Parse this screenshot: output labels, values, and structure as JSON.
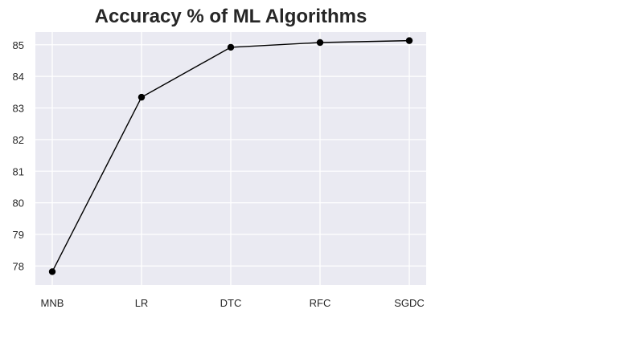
{
  "chart_data": {
    "type": "line",
    "title": "Accuracy % of ML Algorithms",
    "xlabel": "",
    "ylabel": "",
    "categories": [
      "MNB",
      "LR",
      "DTC",
      "RFC",
      "SGDC"
    ],
    "series": [
      {
        "values": [
          77.82,
          83.34,
          84.92,
          85.07,
          85.13
        ],
        "color": "#000000",
        "marker": "circle"
      }
    ],
    "ylim": [
      77.4,
      85.4
    ],
    "yticks": [
      78,
      79,
      80,
      81,
      82,
      83,
      84,
      85
    ],
    "grid": true,
    "legend": "none",
    "background_color": "#eaeaf2",
    "grid_color": "#ffffff"
  }
}
